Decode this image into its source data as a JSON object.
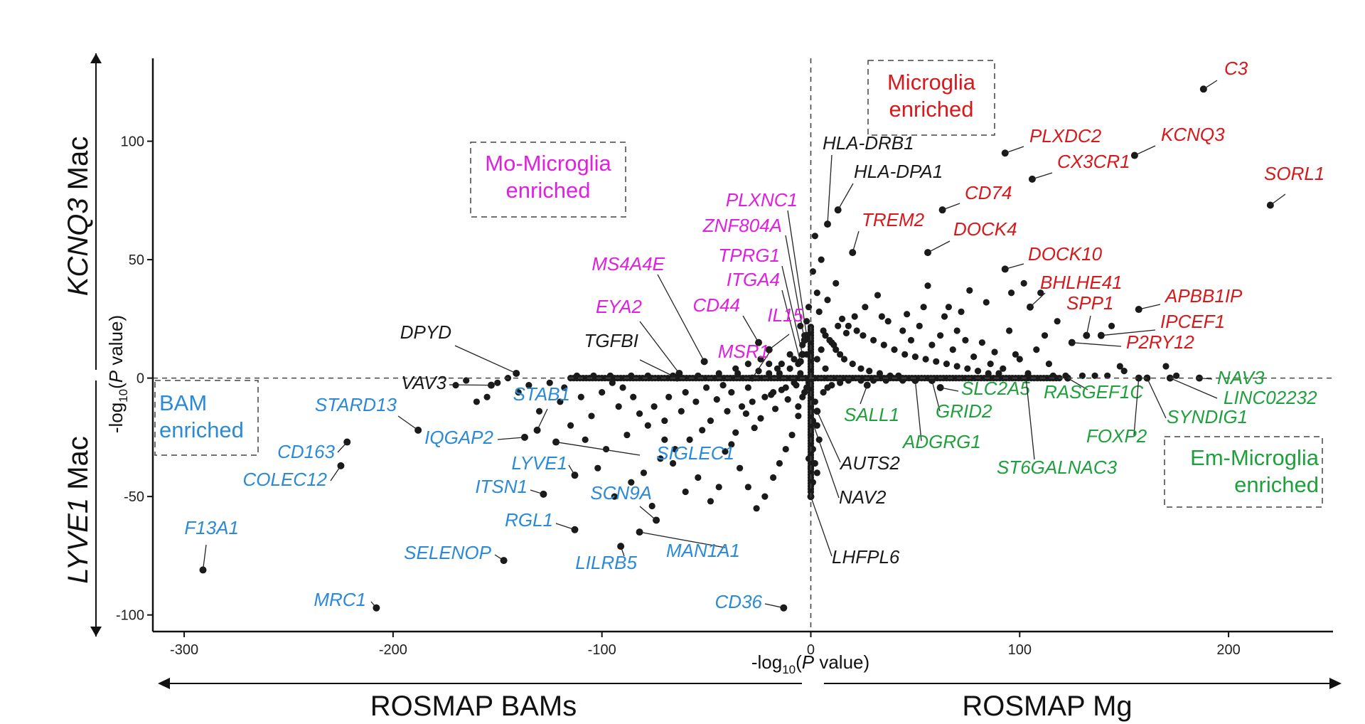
{
  "colors": {
    "black": "#1a1a1a",
    "microglia": "#d7191c",
    "mo_microglia": "#e020e0",
    "bam": "#2a8ad8",
    "em_microglia": "#1ea03c"
  },
  "axes": {
    "x_title_prefix": "-log",
    "x_title_sub": "10",
    "x_title_suffix": "(P value)",
    "y_title_prefix": "-log",
    "y_title_sub": "10",
    "y_title_suffix": "(P value)",
    "y_top_title_italic": "KCNQ3",
    "y_top_title_rest": " Mac",
    "y_bottom_title_italic": "LYVE1",
    "y_bottom_title_rest": " Mac",
    "x_left_title": "ROSMAP BAMs",
    "x_right_title": "ROSMAP Mg"
  },
  "regions": {
    "microglia": [
      "Microglia",
      "enriched"
    ],
    "mo_microglia": [
      "Mo-Microglia",
      "enriched"
    ],
    "bam": [
      "BAM",
      "enriched"
    ],
    "em_microglia": [
      "Em-Microglia",
      "enriched"
    ]
  },
  "chart_data": {
    "type": "scatter",
    "xlabel": "-log10(P value)",
    "ylabel": "-log10(P value)",
    "xlim": [
      -315,
      250
    ],
    "ylim": [
      -107,
      135
    ],
    "x_ticks": [
      -300,
      -200,
      -100,
      0,
      100,
      200
    ],
    "y_ticks": [
      -100,
      -50,
      0,
      50,
      100
    ],
    "x_tick_labels": [
      "-300",
      "-200",
      "-100",
      "0",
      "100",
      "200"
    ],
    "y_tick_labels": [
      "-100",
      "-50",
      "0",
      "50",
      "100"
    ],
    "grid": false,
    "reference_lines": [
      "x=0 dashed",
      "y=0 dashed"
    ],
    "labeled_genes": [
      {
        "gene": "C3",
        "x": 188,
        "y": 122,
        "group": "microglia"
      },
      {
        "gene": "PLXDC2",
        "x": 93,
        "y": 95,
        "group": "microglia"
      },
      {
        "gene": "KCNQ3",
        "x": 155,
        "y": 94,
        "group": "microglia"
      },
      {
        "gene": "CX3CR1",
        "x": 106,
        "y": 84,
        "group": "microglia"
      },
      {
        "gene": "SORL1",
        "x": 220,
        "y": 73,
        "group": "microglia"
      },
      {
        "gene": "CD74",
        "x": 63,
        "y": 71,
        "group": "microglia"
      },
      {
        "gene": "TREM2",
        "x": 20,
        "y": 53,
        "group": "microglia"
      },
      {
        "gene": "DOCK4",
        "x": 56,
        "y": 53,
        "group": "microglia"
      },
      {
        "gene": "DOCK10",
        "x": 93,
        "y": 46,
        "group": "microglia"
      },
      {
        "gene": "BHLHE41",
        "x": 105,
        "y": 30,
        "group": "microglia"
      },
      {
        "gene": "APBB1IP",
        "x": 157,
        "y": 29,
        "group": "microglia"
      },
      {
        "gene": "SPP1",
        "x": 132,
        "y": 18,
        "group": "microglia"
      },
      {
        "gene": "IPCEF1",
        "x": 139,
        "y": 18,
        "group": "microglia"
      },
      {
        "gene": "P2RY12",
        "x": 125,
        "y": 15,
        "group": "microglia"
      },
      {
        "gene": "HLA-DRB1",
        "x": 8,
        "y": 65,
        "group": "black"
      },
      {
        "gene": "HLA-DPA1",
        "x": 13,
        "y": 71,
        "group": "black"
      },
      {
        "gene": "PLXNC1",
        "x": -2,
        "y": 18,
        "group": "mo_microglia"
      },
      {
        "gene": "ZNF804A",
        "x": -3,
        "y": 16,
        "group": "mo_microglia"
      },
      {
        "gene": "TPRG1",
        "x": -4,
        "y": 10,
        "group": "mo_microglia"
      },
      {
        "gene": "ITGA4",
        "x": -5,
        "y": 7,
        "group": "mo_microglia"
      },
      {
        "gene": "MS4A4E",
        "x": -51,
        "y": 7,
        "group": "mo_microglia"
      },
      {
        "gene": "CD44",
        "x": -25,
        "y": 15,
        "group": "mo_microglia"
      },
      {
        "gene": "EYA2",
        "x": -63,
        "y": 2,
        "group": "mo_microglia"
      },
      {
        "gene": "IL15",
        "x": -20,
        "y": 12,
        "group": "mo_microglia"
      },
      {
        "gene": "MSR1",
        "x": -28,
        "y": 0,
        "group": "mo_microglia"
      },
      {
        "gene": "DPYD",
        "x": -141,
        "y": 2,
        "group": "black"
      },
      {
        "gene": "TGFBI",
        "x": -64,
        "y": 0,
        "group": "black"
      },
      {
        "gene": "VAV3",
        "x": -153,
        "y": -3,
        "group": "black"
      },
      {
        "gene": "AUTS2",
        "x": 3,
        "y": -14,
        "group": "black"
      },
      {
        "gene": "NAV2",
        "x": 1,
        "y": -19,
        "group": "black"
      },
      {
        "gene": "LHFPL6",
        "x": 0,
        "y": -50,
        "group": "black"
      },
      {
        "gene": "STARD13",
        "x": -188,
        "y": -22,
        "group": "bam"
      },
      {
        "gene": "STAB1",
        "x": -131,
        "y": -22,
        "group": "bam"
      },
      {
        "gene": "IQGAP2",
        "x": -137,
        "y": -25,
        "group": "bam"
      },
      {
        "gene": "SIGLEC1",
        "x": -122,
        "y": -27,
        "group": "bam"
      },
      {
        "gene": "LYVE1",
        "x": -113,
        "y": -41,
        "group": "bam"
      },
      {
        "gene": "CD163",
        "x": -222,
        "y": -27,
        "group": "bam"
      },
      {
        "gene": "COLEC12",
        "x": -225,
        "y": -37,
        "group": "bam"
      },
      {
        "gene": "ITSN1",
        "x": -128,
        "y": -49,
        "group": "bam"
      },
      {
        "gene": "SCN9A",
        "x": -74,
        "y": -60,
        "group": "bam"
      },
      {
        "gene": "RGL1",
        "x": -113,
        "y": -64,
        "group": "bam"
      },
      {
        "gene": "MAN1A1",
        "x": -82,
        "y": -65,
        "group": "bam"
      },
      {
        "gene": "LILRB5",
        "x": -91,
        "y": -71,
        "group": "bam"
      },
      {
        "gene": "SELENOP",
        "x": -147,
        "y": -77,
        "group": "bam"
      },
      {
        "gene": "F13A1",
        "x": -291,
        "y": -81,
        "group": "bam"
      },
      {
        "gene": "MRC1",
        "x": -208,
        "y": -97,
        "group": "bam"
      },
      {
        "gene": "CD36",
        "x": -13,
        "y": -97,
        "group": "bam"
      },
      {
        "gene": "SLC2A5",
        "x": 62,
        "y": -4,
        "group": "em_microglia"
      },
      {
        "gene": "SALL1",
        "x": 27,
        "y": -3,
        "group": "em_microglia"
      },
      {
        "gene": "GRID2",
        "x": 58,
        "y": -1,
        "group": "em_microglia"
      },
      {
        "gene": "ADGRG1",
        "x": 50,
        "y": -1,
        "group": "em_microglia"
      },
      {
        "gene": "ST6GALNAC3",
        "x": 103,
        "y": 0,
        "group": "em_microglia"
      },
      {
        "gene": "RASGEF1C",
        "x": 123,
        "y": 0,
        "group": "em_microglia"
      },
      {
        "gene": "FOXP2",
        "x": 157,
        "y": 0,
        "group": "em_microglia"
      },
      {
        "gene": "SYNDIG1",
        "x": 161,
        "y": 0,
        "group": "em_microglia"
      },
      {
        "gene": "LINC02232",
        "x": 172,
        "y": 0,
        "group": "em_microglia"
      },
      {
        "gene": "NAV3",
        "x": 186,
        "y": 0,
        "group": "em_microglia"
      }
    ],
    "other_points": [
      [
        2,
        60
      ],
      [
        5,
        50
      ],
      [
        1,
        45
      ],
      [
        12,
        40
      ],
      [
        3,
        36
      ],
      [
        8,
        33
      ],
      [
        4,
        28
      ],
      [
        15,
        25
      ],
      [
        18,
        22
      ],
      [
        22,
        20
      ],
      [
        25,
        18
      ],
      [
        30,
        16
      ],
      [
        35,
        14
      ],
      [
        40,
        12
      ],
      [
        45,
        10
      ],
      [
        50,
        9
      ],
      [
        55,
        8
      ],
      [
        60,
        7
      ],
      [
        65,
        6
      ],
      [
        70,
        5
      ],
      [
        75,
        4
      ],
      [
        80,
        3
      ],
      [
        85,
        2
      ],
      [
        90,
        2
      ],
      [
        10,
        15
      ],
      [
        12,
        12
      ],
      [
        14,
        10
      ],
      [
        16,
        8
      ],
      [
        20,
        6
      ],
      [
        24,
        4
      ],
      [
        28,
        3
      ],
      [
        33,
        2
      ],
      [
        38,
        1
      ],
      [
        42,
        1
      ],
      [
        6,
        20
      ],
      [
        7,
        18
      ],
      [
        9,
        16
      ],
      [
        11,
        14
      ],
      [
        13,
        22
      ],
      [
        17,
        19
      ],
      [
        21,
        26
      ],
      [
        26,
        30
      ],
      [
        32,
        35
      ],
      [
        37,
        24
      ],
      [
        44,
        20
      ],
      [
        48,
        16
      ],
      [
        52,
        22
      ],
      [
        58,
        14
      ],
      [
        62,
        18
      ],
      [
        68,
        12
      ],
      [
        72,
        28
      ],
      [
        78,
        9
      ],
      [
        82,
        15
      ],
      [
        88,
        11
      ],
      [
        95,
        20
      ],
      [
        100,
        8
      ],
      [
        108,
        12
      ],
      [
        114,
        6
      ],
      [
        118,
        24
      ],
      [
        96,
        36
      ],
      [
        84,
        32
      ],
      [
        76,
        37
      ],
      [
        66,
        30
      ],
      [
        56,
        39
      ],
      [
        46,
        27
      ],
      [
        102,
        40
      ],
      [
        110,
        36
      ],
      [
        112,
        18
      ],
      [
        98,
        10
      ],
      [
        144,
        22
      ],
      [
        148,
        5
      ],
      [
        150,
        3
      ],
      [
        170,
        5
      ],
      [
        175,
        1
      ],
      [
        130,
        1
      ],
      [
        34,
        26
      ],
      [
        54,
        30
      ],
      [
        64,
        26
      ],
      [
        70,
        20
      ],
      [
        74,
        16
      ],
      [
        86,
        6
      ],
      [
        92,
        4
      ],
      [
        104,
        2
      ],
      [
        116,
        1
      ],
      [
        122,
        1
      ],
      [
        136,
        1
      ],
      [
        142,
        1
      ],
      [
        3,
        8
      ],
      [
        5,
        12
      ],
      [
        7,
        4
      ],
      [
        -5,
        2
      ],
      [
        -8,
        -2
      ],
      [
        -10,
        4
      ],
      [
        -12,
        -4
      ],
      [
        -15,
        2
      ],
      [
        -18,
        -6
      ],
      [
        -20,
        6
      ],
      [
        -22,
        -8
      ],
      [
        -25,
        3
      ],
      [
        -28,
        -10
      ],
      [
        -30,
        -4
      ],
      [
        -33,
        -12
      ],
      [
        -35,
        2
      ],
      [
        -38,
        -6
      ],
      [
        -40,
        -14
      ],
      [
        -42,
        -3
      ],
      [
        -45,
        -9
      ],
      [
        -48,
        -18
      ],
      [
        -50,
        -4
      ],
      [
        -52,
        -22
      ],
      [
        -55,
        -10
      ],
      [
        -58,
        -26
      ],
      [
        -60,
        -6
      ],
      [
        -62,
        -14
      ],
      [
        -65,
        -30
      ],
      [
        -68,
        -8
      ],
      [
        -70,
        -18
      ],
      [
        -72,
        -34
      ],
      [
        -75,
        -12
      ],
      [
        -78,
        -20
      ],
      [
        -80,
        -40
      ],
      [
        -82,
        -15
      ],
      [
        -85,
        -8
      ],
      [
        -88,
        -24
      ],
      [
        -90,
        -4
      ],
      [
        -92,
        -12
      ],
      [
        -95,
        -2
      ],
      [
        -98,
        -30
      ],
      [
        -100,
        -6
      ],
      [
        -105,
        -16
      ],
      [
        -108,
        -26
      ],
      [
        -110,
        -8
      ],
      [
        -115,
        -20
      ],
      [
        -118,
        -4
      ],
      [
        -120,
        -10
      ],
      [
        -125,
        -2
      ],
      [
        -130,
        -14
      ],
      [
        -135,
        -3
      ],
      [
        -140,
        -6
      ],
      [
        -145,
        0
      ],
      [
        -150,
        -2
      ],
      [
        -155,
        -8
      ],
      [
        -160,
        -10
      ],
      [
        -165,
        -1
      ],
      [
        -170,
        -3
      ],
      [
        -6,
        -16
      ],
      [
        -9,
        -24
      ],
      [
        -12,
        -30
      ],
      [
        -15,
        -36
      ],
      [
        -18,
        -42
      ],
      [
        -22,
        -50
      ],
      [
        -26,
        -55
      ],
      [
        -30,
        -46
      ],
      [
        -34,
        -38
      ],
      [
        -38,
        -28
      ],
      [
        -44,
        -46
      ],
      [
        -48,
        -52
      ],
      [
        -54,
        -42
      ],
      [
        -60,
        -48
      ],
      [
        -66,
        -36
      ],
      [
        -70,
        -26
      ],
      [
        -76,
        -54
      ],
      [
        -86,
        -44
      ],
      [
        -94,
        -50
      ],
      [
        -102,
        -38
      ],
      [
        -4,
        -8
      ],
      [
        -6,
        -12
      ],
      [
        -3,
        -6
      ],
      [
        -2,
        -4
      ],
      [
        -1,
        -2
      ],
      [
        -7,
        -3
      ],
      [
        -11,
        -9
      ],
      [
        -14,
        -5
      ],
      [
        -17,
        -13
      ],
      [
        -19,
        -7
      ],
      [
        -24,
        -17
      ],
      [
        -27,
        -21
      ],
      [
        -31,
        -15
      ],
      [
        -36,
        -23
      ],
      [
        -41,
        -31
      ],
      [
        -2,
        10
      ],
      [
        -4,
        14
      ],
      [
        -6,
        6
      ],
      [
        -8,
        8
      ],
      [
        -10,
        10
      ],
      [
        -14,
        6
      ],
      [
        -16,
        4
      ],
      [
        -20,
        2
      ],
      [
        -24,
        8
      ],
      [
        -30,
        6
      ],
      [
        -36,
        4
      ],
      [
        -44,
        2
      ],
      [
        -54,
        1
      ],
      [
        -66,
        1
      ],
      [
        -78,
        1
      ],
      [
        -86,
        1
      ],
      [
        -96,
        1
      ],
      [
        -104,
        1
      ],
      [
        -112,
        1
      ],
      [
        -2,
        24
      ],
      [
        -1,
        30
      ],
      [
        -3,
        18
      ],
      [
        -5,
        22
      ],
      [
        2,
        -10
      ],
      [
        3,
        -20
      ],
      [
        4,
        -26
      ],
      [
        1,
        -30
      ],
      [
        2,
        -36
      ],
      [
        3,
        -40
      ],
      [
        1,
        -44
      ],
      [
        0,
        -38
      ],
      [
        -1,
        -34
      ],
      [
        0,
        -24
      ],
      [
        1,
        -18
      ],
      [
        0,
        -12
      ],
      [
        6,
        -6
      ],
      [
        8,
        -4
      ],
      [
        10,
        -3
      ],
      [
        14,
        -2
      ],
      [
        18,
        -1
      ],
      [
        24,
        -1
      ],
      [
        30,
        -1
      ],
      [
        36,
        -1
      ],
      [
        44,
        -1
      ]
    ]
  }
}
